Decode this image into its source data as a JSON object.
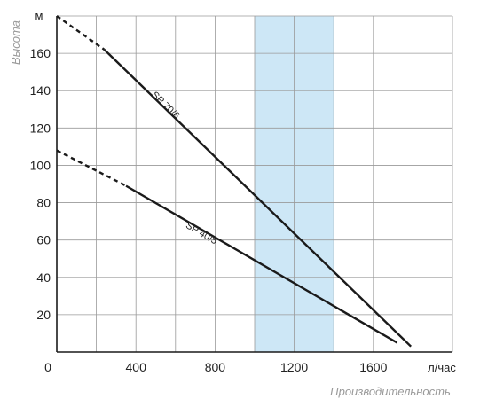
{
  "chart_data": {
    "type": "line",
    "xlabel": "Производительность",
    "ylabel": "Высота",
    "x_unit": "л/час",
    "y_unit": "м",
    "xlim": [
      0,
      2000
    ],
    "ylim": [
      0,
      180
    ],
    "x_ticks": [
      "0",
      "400",
      "800",
      "1200",
      "1600"
    ],
    "y_ticks": [
      "20",
      "40",
      "60",
      "80",
      "100",
      "120",
      "140",
      "160"
    ],
    "grid": true,
    "highlight_band": {
      "x_from": 1000,
      "x_to": 1400,
      "color": "#cde7f6"
    },
    "series": [
      {
        "name": "SP 70/6",
        "dashed_points": [
          [
            0,
            180
          ],
          [
            240,
            162
          ]
        ],
        "solid_points": [
          [
            240,
            162
          ],
          [
            1790,
            3
          ]
        ]
      },
      {
        "name": "SP 40/5",
        "dashed_points": [
          [
            0,
            108
          ],
          [
            350,
            89
          ]
        ],
        "solid_points": [
          [
            350,
            89
          ],
          [
            1720,
            5
          ]
        ]
      }
    ],
    "colors": {
      "line": "#1a1a1a",
      "grid": "#9a9a9a",
      "axis": "#1a1a1a",
      "band": "#cde7f6"
    }
  }
}
